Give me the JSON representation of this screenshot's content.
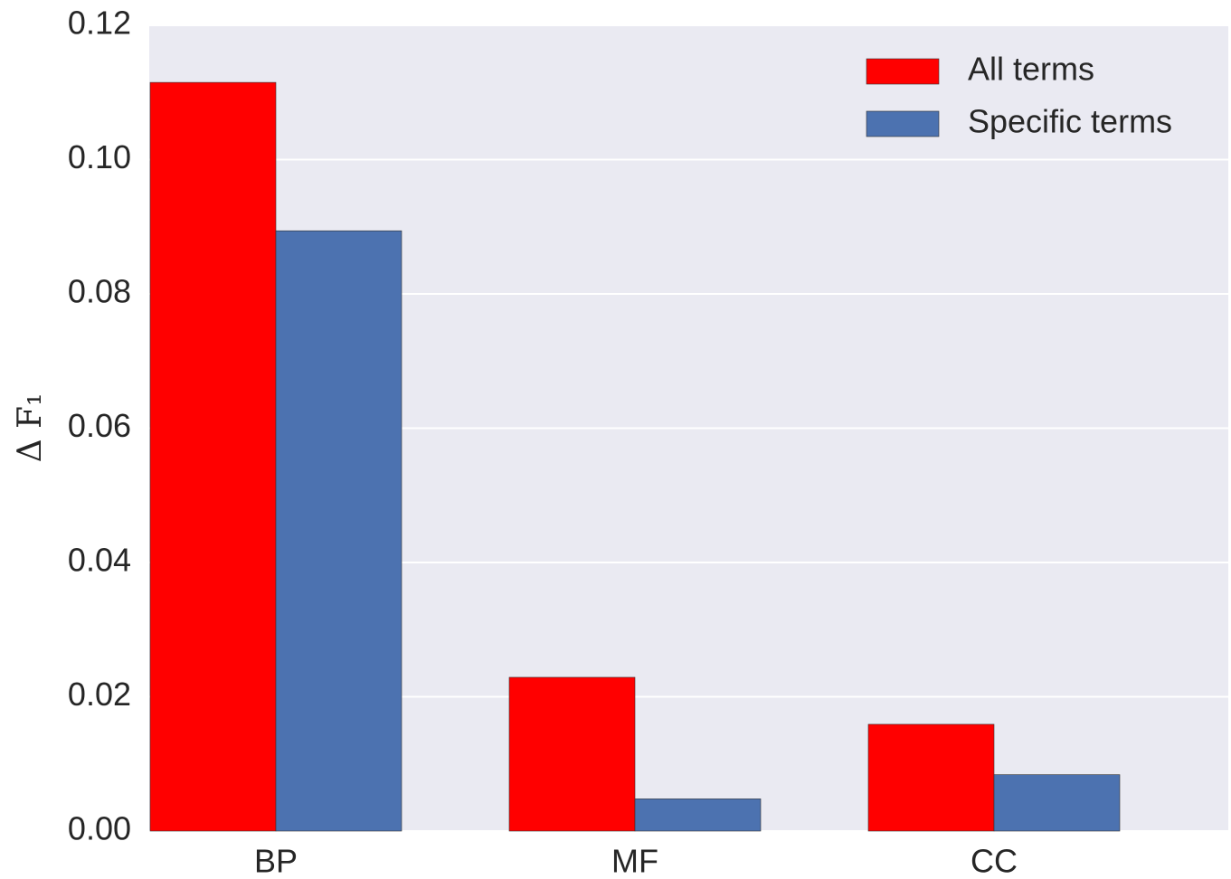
{
  "chart_data": {
    "type": "bar",
    "ylabel": "Δ F₁",
    "categories": [
      "BP",
      "MF",
      "CC"
    ],
    "series": [
      {
        "name": "All terms",
        "color": "#ff0000",
        "values": [
          0.1115,
          0.0229,
          0.0159
        ]
      },
      {
        "name": "Specific terms",
        "color": "#4c72b0",
        "values": [
          0.0894,
          0.0048,
          0.0084
        ]
      }
    ],
    "ylim": [
      0,
      0.12
    ],
    "yticks": [
      {
        "value": 0,
        "label": "0.00"
      },
      {
        "value": 0.02,
        "label": "0.02"
      },
      {
        "value": 0.04,
        "label": "0.04"
      },
      {
        "value": 0.06,
        "label": "0.06"
      },
      {
        "value": 0.08,
        "label": "0.08"
      },
      {
        "value": 0.1,
        "label": "0.10"
      },
      {
        "value": 0.12,
        "label": "0.12"
      }
    ],
    "grid": true,
    "legend": "upper right"
  }
}
